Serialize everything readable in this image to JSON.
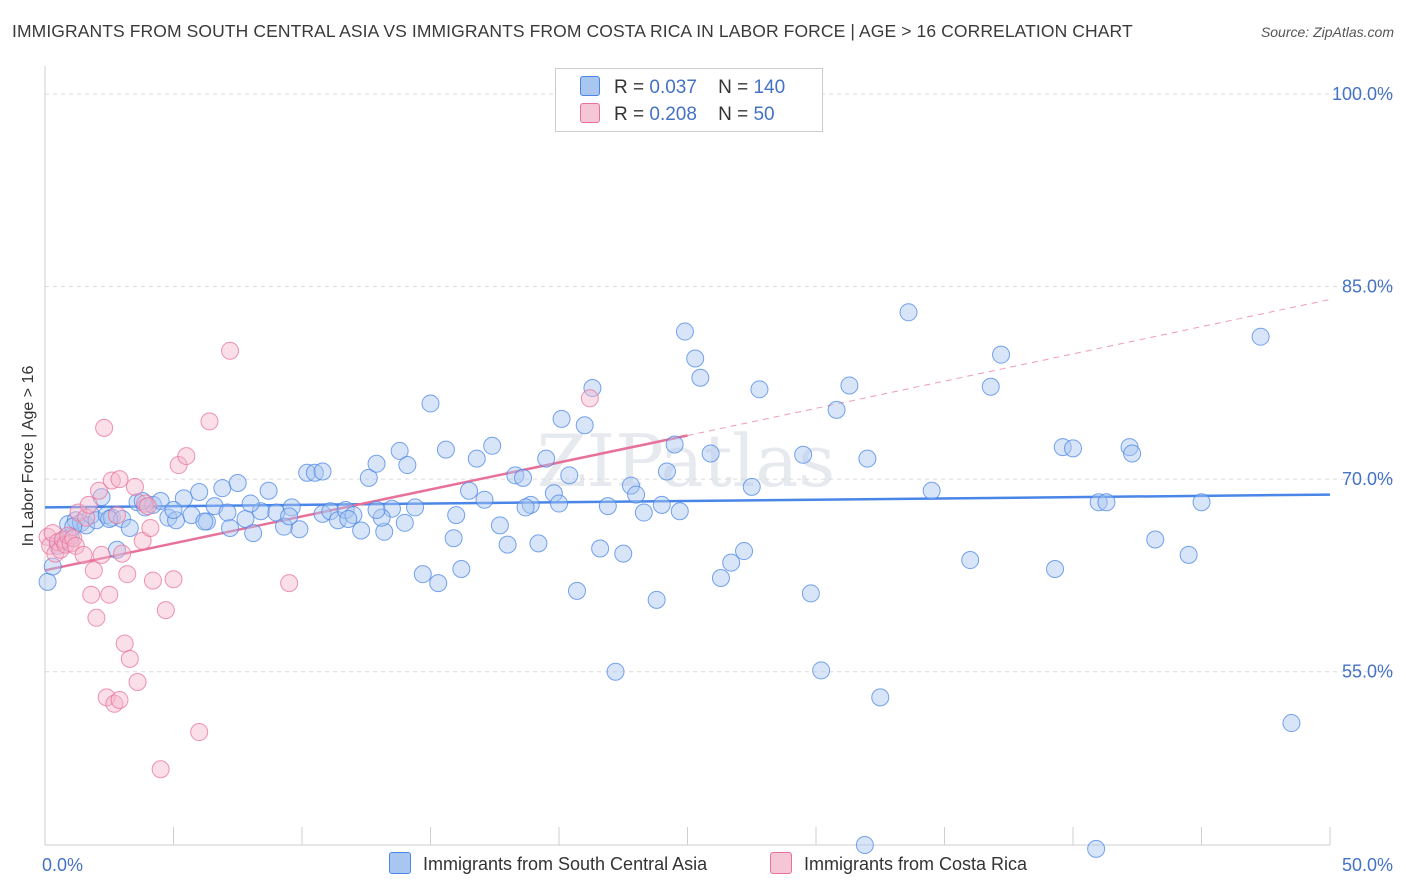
{
  "title": "IMMIGRANTS FROM SOUTH CENTRAL ASIA VS IMMIGRANTS FROM COSTA RICA IN LABOR FORCE | AGE > 16 CORRELATION CHART",
  "source": "Source: ZipAtlas.com",
  "watermark": "ZIPatlas",
  "legend_top": {
    "rows": [
      {
        "r_label": "R =",
        "r_value": "0.037",
        "n_label": "N =",
        "n_value": "140"
      },
      {
        "r_label": "R =",
        "r_value": "0.208",
        "n_label": "N =",
        "n_value": "50"
      }
    ]
  },
  "legend_bottom": {
    "items": [
      "Immigrants from South Central Asia",
      "Immigrants from Costa Rica"
    ]
  },
  "chart_data": {
    "type": "scatter",
    "ylabel": "In Labor Force | Age > 16",
    "x_tick_labels": [
      "0.0%",
      "50.0%"
    ],
    "y_tick_labels": [
      "100.0%",
      "85.0%",
      "70.0%",
      "55.0%"
    ],
    "y_ticks": [
      100,
      85,
      70,
      55
    ],
    "xlim": [
      0,
      50
    ],
    "ylim": [
      41.5,
      102.5
    ],
    "grid": "horizontal dashed",
    "colors": {
      "blue": "#4a86e8",
      "pink": "#e8719a",
      "blue_fill": "#a8c6f0",
      "pink_fill": "#f5b6cb"
    },
    "series": [
      {
        "name": "Immigrants from South Central Asia",
        "color": "#4a86e8",
        "trend": {
          "x": [
            0,
            50
          ],
          "y": [
            67.8,
            68.8
          ]
        },
        "points": [
          [
            0.1,
            62.0
          ],
          [
            0.3,
            63.2
          ],
          [
            0.5,
            64.8
          ],
          [
            0.7,
            65.2
          ],
          [
            0.9,
            66.5
          ],
          [
            1.0,
            65.5
          ],
          [
            1.2,
            66.8
          ],
          [
            1.4,
            66.6
          ],
          [
            1.6,
            66.4
          ],
          [
            1.8,
            67.2
          ],
          [
            2.0,
            66.8
          ],
          [
            2.2,
            68.6
          ],
          [
            2.4,
            67.2
          ],
          [
            2.6,
            67.0
          ],
          [
            2.8,
            64.5
          ],
          [
            3.0,
            66.9
          ],
          [
            3.3,
            66.2
          ],
          [
            3.6,
            68.2
          ],
          [
            3.9,
            67.8
          ],
          [
            4.2,
            68.0
          ],
          [
            4.5,
            68.3
          ],
          [
            4.8,
            67.0
          ],
          [
            5.1,
            66.8
          ],
          [
            5.4,
            68.5
          ],
          [
            5.7,
            67.2
          ],
          [
            6.0,
            69.0
          ],
          [
            6.3,
            66.7
          ],
          [
            6.6,
            67.9
          ],
          [
            6.9,
            69.3
          ],
          [
            7.2,
            66.2
          ],
          [
            7.5,
            69.7
          ],
          [
            7.8,
            66.9
          ],
          [
            8.1,
            65.8
          ],
          [
            8.4,
            67.5
          ],
          [
            8.7,
            69.1
          ],
          [
            9.0,
            67.4
          ],
          [
            9.3,
            66.3
          ],
          [
            9.6,
            67.8
          ],
          [
            9.9,
            66.1
          ],
          [
            10.2,
            70.5
          ],
          [
            10.5,
            70.5
          ],
          [
            10.8,
            67.3
          ],
          [
            11.1,
            67.5
          ],
          [
            11.4,
            66.8
          ],
          [
            11.7,
            67.6
          ],
          [
            12.0,
            67.2
          ],
          [
            12.3,
            66.0
          ],
          [
            12.6,
            70.1
          ],
          [
            12.9,
            71.2
          ],
          [
            13.2,
            65.9
          ],
          [
            13.5,
            67.7
          ],
          [
            13.8,
            72.2
          ],
          [
            14.1,
            71.1
          ],
          [
            14.4,
            67.8
          ],
          [
            14.7,
            62.6
          ],
          [
            15.0,
            75.9
          ],
          [
            15.3,
            61.9
          ],
          [
            15.6,
            72.3
          ],
          [
            15.9,
            65.4
          ],
          [
            16.2,
            63.0
          ],
          [
            16.5,
            69.1
          ],
          [
            16.8,
            71.6
          ],
          [
            17.1,
            68.4
          ],
          [
            17.4,
            72.6
          ],
          [
            17.7,
            66.4
          ],
          [
            18.0,
            64.9
          ],
          [
            18.3,
            70.3
          ],
          [
            18.6,
            70.1
          ],
          [
            18.9,
            68.0
          ],
          [
            19.2,
            65.0
          ],
          [
            19.5,
            71.6
          ],
          [
            19.8,
            68.9
          ],
          [
            20.1,
            74.7
          ],
          [
            20.4,
            70.3
          ],
          [
            20.7,
            61.3
          ],
          [
            21.0,
            74.2
          ],
          [
            21.3,
            77.1
          ],
          [
            21.6,
            64.6
          ],
          [
            21.9,
            67.9
          ],
          [
            22.2,
            55.0
          ],
          [
            22.5,
            64.2
          ],
          [
            22.8,
            69.5
          ],
          [
            23.3,
            67.4
          ],
          [
            23.8,
            60.6
          ],
          [
            24.2,
            70.6
          ],
          [
            24.5,
            72.7
          ],
          [
            24.7,
            67.5
          ],
          [
            24.9,
            81.5
          ],
          [
            25.3,
            79.4
          ],
          [
            25.5,
            77.9
          ],
          [
            25.9,
            72.0
          ],
          [
            26.3,
            62.3
          ],
          [
            26.7,
            63.5
          ],
          [
            27.2,
            64.4
          ],
          [
            27.5,
            69.4
          ],
          [
            27.8,
            77.0
          ],
          [
            29.5,
            71.9
          ],
          [
            29.8,
            61.1
          ],
          [
            30.2,
            55.1
          ],
          [
            30.8,
            75.4
          ],
          [
            31.3,
            77.3
          ],
          [
            31.9,
            41.5
          ],
          [
            32.0,
            71.6
          ],
          [
            32.5,
            53.0
          ],
          [
            33.6,
            83.0
          ],
          [
            34.5,
            69.1
          ],
          [
            36.0,
            63.7
          ],
          [
            36.8,
            77.2
          ],
          [
            37.2,
            79.7
          ],
          [
            39.3,
            63.0
          ],
          [
            39.6,
            72.5
          ],
          [
            40.0,
            72.4
          ],
          [
            40.9,
            41.2
          ],
          [
            41.0,
            68.2
          ],
          [
            41.3,
            68.2
          ],
          [
            42.2,
            72.5
          ],
          [
            42.3,
            72.0
          ],
          [
            43.2,
            65.3
          ],
          [
            44.5,
            64.1
          ],
          [
            45.0,
            68.2
          ],
          [
            47.3,
            81.1
          ],
          [
            48.5,
            51.0
          ],
          [
            1.1,
            66.3
          ],
          [
            2.5,
            66.9
          ],
          [
            3.8,
            68.3
          ],
          [
            5.0,
            67.6
          ],
          [
            6.2,
            66.7
          ],
          [
            8.0,
            68.1
          ],
          [
            9.5,
            67.1
          ],
          [
            11.8,
            66.9
          ],
          [
            13.1,
            67.0
          ],
          [
            14.0,
            66.6
          ],
          [
            16.0,
            67.2
          ],
          [
            18.7,
            67.8
          ],
          [
            20.0,
            68.1
          ],
          [
            24.0,
            68.0
          ],
          [
            10.8,
            70.6
          ],
          [
            23.0,
            68.8
          ],
          [
            12.9,
            67.6
          ],
          [
            7.1,
            67.4
          ]
        ]
      },
      {
        "name": "Immigrants from Costa Rica",
        "color": "#e8719a",
        "trend": {
          "x": [
            0,
            25
          ],
          "y": [
            62.9,
            73.4
          ]
        },
        "trend_dashed": {
          "x": [
            25,
            50
          ],
          "y": [
            73.4,
            84.0
          ]
        },
        "points": [
          [
            0.1,
            65.5
          ],
          [
            0.2,
            64.8
          ],
          [
            0.3,
            65.8
          ],
          [
            0.4,
            64.2
          ],
          [
            0.5,
            65.1
          ],
          [
            0.6,
            64.5
          ],
          [
            0.7,
            65.3
          ],
          [
            0.8,
            64.9
          ],
          [
            0.9,
            65.6
          ],
          [
            1.0,
            65.0
          ],
          [
            1.1,
            65.4
          ],
          [
            1.2,
            64.8
          ],
          [
            1.3,
            67.4
          ],
          [
            1.5,
            64.1
          ],
          [
            1.6,
            67.0
          ],
          [
            1.7,
            68.0
          ],
          [
            1.8,
            61.0
          ],
          [
            1.9,
            62.9
          ],
          [
            2.0,
            59.2
          ],
          [
            2.1,
            69.1
          ],
          [
            2.2,
            64.1
          ],
          [
            2.3,
            74.0
          ],
          [
            2.4,
            53.0
          ],
          [
            2.5,
            61.0
          ],
          [
            2.6,
            69.9
          ],
          [
            2.7,
            52.5
          ],
          [
            2.8,
            67.2
          ],
          [
            2.9,
            52.8
          ],
          [
            3.0,
            64.2
          ],
          [
            3.1,
            57.2
          ],
          [
            3.2,
            62.6
          ],
          [
            3.3,
            56.0
          ],
          [
            3.5,
            69.4
          ],
          [
            3.6,
            54.2
          ],
          [
            3.8,
            65.2
          ],
          [
            3.9,
            68.1
          ],
          [
            4.0,
            67.9
          ],
          [
            4.2,
            62.1
          ],
          [
            4.5,
            47.4
          ],
          [
            4.7,
            59.8
          ],
          [
            5.0,
            62.2
          ],
          [
            5.2,
            71.1
          ],
          [
            5.5,
            71.8
          ],
          [
            6.0,
            50.3
          ],
          [
            6.4,
            74.5
          ],
          [
            7.2,
            80.0
          ],
          [
            9.5,
            61.9
          ],
          [
            21.2,
            76.3
          ],
          [
            4.1,
            66.2
          ],
          [
            2.9,
            70.0
          ]
        ]
      }
    ]
  }
}
